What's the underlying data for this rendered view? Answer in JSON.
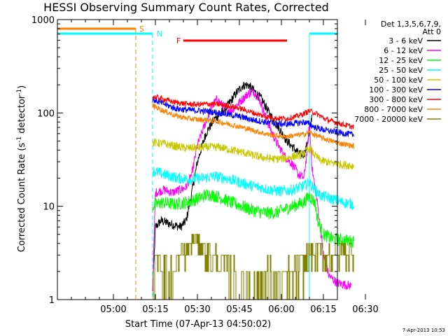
{
  "chart_data": {
    "type": "line",
    "title": "HESSI Observing Summary Count Rates, Corrected",
    "xlabel": "Start Time (07-Apr-13 04:50:02)",
    "ylabel_main": "Corrected Count Rate (s",
    "ylabel_sup1": "-1",
    "ylabel_mid": " detector",
    "ylabel_sup2": "-1",
    "ylabel_end": ")",
    "yscale": "log",
    "ylim": [
      1,
      1000
    ],
    "xlim_minutes": [
      -10,
      90
    ],
    "x_ticks": [
      {
        "label": "05:00",
        "t": 10
      },
      {
        "label": "05:15",
        "t": 25
      },
      {
        "label": "05:30",
        "t": 40
      },
      {
        "label": "05:45",
        "t": 55
      },
      {
        "label": "06:00",
        "t": 70
      },
      {
        "label": "06:15",
        "t": 85
      },
      {
        "label": "06:30",
        "t": 100
      }
    ],
    "y_ticks": [
      {
        "label": "1",
        "v": 1
      },
      {
        "label": "10",
        "v": 10
      },
      {
        "label": "100",
        "v": 100
      },
      {
        "label": "1000",
        "v": 1000
      }
    ],
    "legend": {
      "header1": "Det 1,3,5,6,7,9,",
      "header2": "Att 0",
      "position": "right"
    },
    "series": [
      {
        "name": "3 - 6 keV",
        "color": "#000000",
        "noise": 0.05,
        "valid": [
          24,
          85
        ],
        "points": [
          [
            24,
            1.2
          ],
          [
            25,
            6
          ],
          [
            27,
            7
          ],
          [
            30,
            6.5
          ],
          [
            34,
            6
          ],
          [
            36,
            7
          ],
          [
            38,
            14
          ],
          [
            40,
            30
          ],
          [
            43,
            60
          ],
          [
            46,
            85
          ],
          [
            50,
            110
          ],
          [
            53,
            150
          ],
          [
            56,
            195
          ],
          [
            58,
            200
          ],
          [
            60,
            175
          ],
          [
            63,
            140
          ],
          [
            66,
            95
          ],
          [
            69,
            70
          ],
          [
            72,
            50
          ],
          [
            75,
            40
          ],
          [
            77,
            35
          ],
          [
            78.5,
            38
          ],
          [
            80,
            60
          ],
          [
            81,
            100
          ]
        ]
      },
      {
        "name": "6 - 12 keV",
        "color": "#ff00ff",
        "noise": 0.05,
        "valid": [
          24,
          95
        ],
        "points": [
          [
            24,
            1.3
          ],
          [
            25,
            14
          ],
          [
            28,
            15
          ],
          [
            31,
            14
          ],
          [
            34,
            15
          ],
          [
            36,
            16
          ],
          [
            38,
            22
          ],
          [
            40,
            45
          ],
          [
            43,
            80
          ],
          [
            45,
            115
          ],
          [
            47,
            140
          ],
          [
            49,
            120
          ],
          [
            52,
            105
          ],
          [
            55,
            130
          ],
          [
            58,
            160
          ],
          [
            60,
            170
          ],
          [
            62,
            145
          ],
          [
            65,
            80
          ],
          [
            68,
            50
          ],
          [
            71,
            35
          ],
          [
            74,
            28
          ],
          [
            76,
            22
          ],
          [
            78,
            20
          ],
          [
            79,
            35
          ],
          [
            80,
            75
          ],
          [
            81,
            25
          ],
          [
            83,
            10
          ],
          [
            85,
            3
          ],
          [
            87,
            1.8
          ],
          [
            90,
            1.5
          ],
          [
            95,
            1.4
          ]
        ]
      },
      {
        "name": "12 - 25 keV",
        "color": "#00ff00",
        "noise": 0.07,
        "valid": [
          24,
          96
        ],
        "points": [
          [
            24,
            10
          ],
          [
            27,
            11
          ],
          [
            32,
            10.5
          ],
          [
            36,
            11
          ],
          [
            40,
            12
          ],
          [
            44,
            13.5
          ],
          [
            48,
            12.5
          ],
          [
            52,
            11
          ],
          [
            56,
            10
          ],
          [
            60,
            9
          ],
          [
            64,
            8.5
          ],
          [
            68,
            8.5
          ],
          [
            72,
            9.5
          ],
          [
            76,
            10.5
          ],
          [
            78,
            11
          ],
          [
            80,
            13
          ],
          [
            82,
            11
          ],
          [
            83,
            7
          ],
          [
            85,
            5
          ],
          [
            88,
            4.5
          ],
          [
            92,
            4.3
          ],
          [
            96,
            4.2
          ]
        ]
      },
      {
        "name": "25 - 50 keV",
        "color": "#00ffff",
        "noise": 0.06,
        "valid": [
          24,
          96
        ],
        "points": [
          [
            24,
            24
          ],
          [
            28,
            22
          ],
          [
            33,
            20
          ],
          [
            38,
            19.5
          ],
          [
            42,
            20
          ],
          [
            46,
            21
          ],
          [
            50,
            20
          ],
          [
            54,
            18.5
          ],
          [
            58,
            17
          ],
          [
            62,
            16
          ],
          [
            66,
            15
          ],
          [
            70,
            14.5
          ],
          [
            74,
            15
          ],
          [
            78,
            16.5
          ],
          [
            80,
            18
          ],
          [
            82,
            15
          ],
          [
            84,
            13
          ],
          [
            88,
            12
          ],
          [
            92,
            11
          ],
          [
            96,
            10.5
          ]
        ]
      },
      {
        "name": "50 - 100 keV",
        "color": "#c8c800",
        "noise": 0.045,
        "valid": [
          24,
          96
        ],
        "points": [
          [
            24,
            48
          ],
          [
            28,
            47
          ],
          [
            32,
            44
          ],
          [
            36,
            42
          ],
          [
            40,
            42.5
          ],
          [
            44,
            43
          ],
          [
            48,
            43
          ],
          [
            52,
            40
          ],
          [
            56,
            38
          ],
          [
            60,
            35
          ],
          [
            64,
            33
          ],
          [
            68,
            32
          ],
          [
            72,
            33
          ],
          [
            76,
            35
          ],
          [
            78,
            37
          ],
          [
            80,
            42
          ],
          [
            82,
            35
          ],
          [
            84,
            31
          ],
          [
            88,
            29
          ],
          [
            92,
            28
          ],
          [
            96,
            27
          ]
        ]
      },
      {
        "name": "100 - 300 keV",
        "color": "#0000ff",
        "noise": 0.035,
        "valid": [
          24,
          96
        ],
        "points": [
          [
            24,
            140
          ],
          [
            28,
            125
          ],
          [
            32,
            112
          ],
          [
            36,
            108
          ],
          [
            40,
            106
          ],
          [
            44,
            104
          ],
          [
            48,
            100
          ],
          [
            52,
            95
          ],
          [
            56,
            90
          ],
          [
            60,
            84
          ],
          [
            64,
            80
          ],
          [
            68,
            77
          ],
          [
            72,
            76
          ],
          [
            76,
            78
          ],
          [
            78,
            80
          ],
          [
            80,
            76
          ],
          [
            82,
            70
          ],
          [
            86,
            65
          ],
          [
            90,
            62
          ],
          [
            96,
            58
          ]
        ]
      },
      {
        "name": "300 - 800 keV",
        "color": "#ff0000",
        "noise": 0.03,
        "valid": [
          24,
          96
        ],
        "points": [
          [
            24,
            150
          ],
          [
            28,
            140
          ],
          [
            32,
            130
          ],
          [
            36,
            125
          ],
          [
            40,
            123
          ],
          [
            44,
            125
          ],
          [
            48,
            123
          ],
          [
            52,
            118
          ],
          [
            56,
            110
          ],
          [
            60,
            100
          ],
          [
            64,
            92
          ],
          [
            68,
            88
          ],
          [
            72,
            87
          ],
          [
            76,
            93
          ],
          [
            78,
            98
          ],
          [
            80,
            105
          ],
          [
            82,
            100
          ],
          [
            86,
            85
          ],
          [
            90,
            78
          ],
          [
            96,
            70
          ]
        ]
      },
      {
        "name": "800 - 7000 keV",
        "color": "#ff8000",
        "noise": 0.03,
        "valid": [
          24,
          96
        ],
        "points": [
          [
            24,
            120
          ],
          [
            28,
            105
          ],
          [
            32,
            94
          ],
          [
            36,
            88
          ],
          [
            40,
            85
          ],
          [
            44,
            84
          ],
          [
            48,
            80
          ],
          [
            52,
            75
          ],
          [
            56,
            70
          ],
          [
            60,
            65
          ],
          [
            64,
            60
          ],
          [
            68,
            57
          ],
          [
            72,
            56
          ],
          [
            76,
            58
          ],
          [
            78,
            59
          ],
          [
            80,
            62
          ],
          [
            82,
            58
          ],
          [
            86,
            52
          ],
          [
            90,
            48
          ],
          [
            96,
            44
          ]
        ]
      },
      {
        "name": "7000 - 20000 keV",
        "color": "#808000",
        "noise": 0,
        "valid": [
          24,
          96
        ],
        "step": true,
        "points": [
          [
            24,
            1.5
          ],
          [
            25,
            2
          ],
          [
            26,
            3
          ],
          [
            30,
            1.5
          ],
          [
            33,
            2.5
          ],
          [
            36,
            3.5
          ],
          [
            39,
            4.5
          ],
          [
            44,
            3.2
          ],
          [
            48,
            2.5
          ],
          [
            52,
            1.8
          ],
          [
            55,
            1.4
          ],
          [
            58,
            1.5
          ],
          [
            62,
            1.4
          ],
          [
            65,
            1.7
          ],
          [
            68,
            1.4
          ],
          [
            72,
            1.5
          ],
          [
            76,
            2
          ],
          [
            80,
            3
          ],
          [
            84,
            3.2
          ],
          [
            88,
            3
          ],
          [
            92,
            3.5
          ],
          [
            96,
            3
          ]
        ]
      }
    ],
    "overlays": {
      "saa": {
        "label": "S",
        "color": "#ff8000",
        "t_start": -10,
        "t_end": 18
      },
      "night": {
        "label": "N",
        "color": "#00ffff",
        "t_start": -10,
        "t_end": 24,
        "t_start2": 80,
        "t_end2": 96
      },
      "flare": {
        "label": "F",
        "color": "#ff0000",
        "t_start": 35,
        "t_end": 72
      }
    }
  },
  "timestamp": "7-Apr-2013 10:53"
}
